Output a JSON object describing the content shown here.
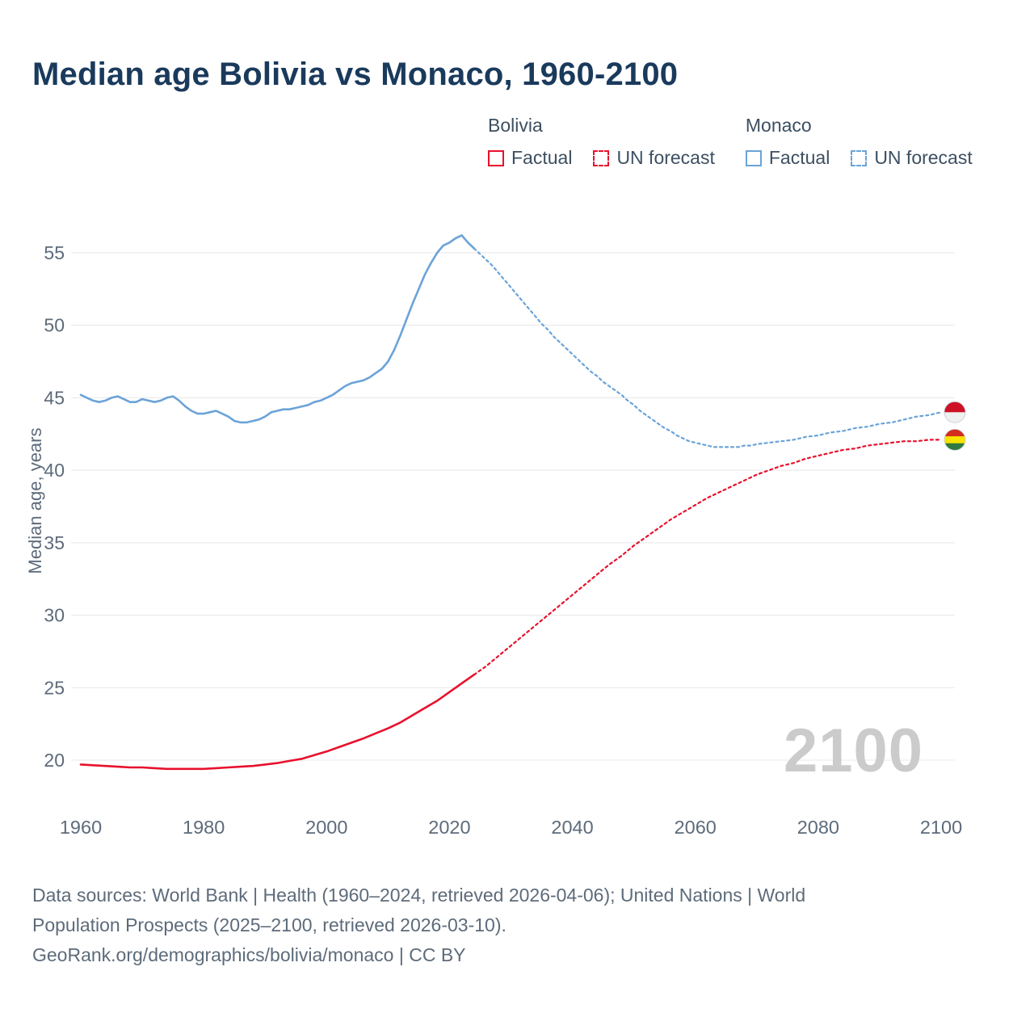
{
  "title": "Median age Bolivia vs Monaco, 1960-2100",
  "watermark": "2100",
  "colors": {
    "title": "#1a3a5c",
    "bolivia": "#e8112d",
    "monaco": "#6ba3d8",
    "axis_text": "#5d6b7a",
    "grid": "#e8e8e8",
    "watermark": "#cbcbcb"
  },
  "legend": {
    "groups": [
      {
        "name": "Bolivia",
        "color": "#e8112d",
        "items": [
          {
            "label": "Factual",
            "style": "solid"
          },
          {
            "label": "UN forecast",
            "style": "dashed"
          }
        ]
      },
      {
        "name": "Monaco",
        "color": "#6ba3d8",
        "items": [
          {
            "label": "Factual",
            "style": "solid"
          },
          {
            "label": "UN forecast",
            "style": "dashed"
          }
        ]
      }
    ]
  },
  "footer": {
    "lines": [
      "Data sources: World Bank | Health (1960–2024, retrieved 2026-04-06); United Nations | World",
      "Population Prospects (2025–2100, retrieved 2026-03-10).",
      "GeoRank.org/demographics/bolivia/monaco | CC BY"
    ]
  },
  "chart_data": {
    "type": "line",
    "title": "Median age Bolivia vs Monaco, 1960-2100",
    "xlabel": "",
    "ylabel": "Median age, years",
    "xlim": [
      1960,
      2100
    ],
    "ylim": [
      19,
      57.5
    ],
    "xticks": [
      1960,
      1980,
      2000,
      2020,
      2040,
      2060,
      2080,
      2100
    ],
    "yticks": [
      20,
      25,
      30,
      35,
      40,
      45,
      50,
      55
    ],
    "grid": "horizontal",
    "legend_position": "top",
    "series": [
      {
        "id": "monaco-factual",
        "name": "Monaco Factual",
        "color": "#6ba3d8",
        "style": "solid",
        "points": [
          [
            1960,
            45.2
          ],
          [
            1961,
            45.0
          ],
          [
            1962,
            44.8
          ],
          [
            1963,
            44.7
          ],
          [
            1964,
            44.8
          ],
          [
            1965,
            45.0
          ],
          [
            1966,
            45.1
          ],
          [
            1967,
            44.9
          ],
          [
            1968,
            44.7
          ],
          [
            1969,
            44.7
          ],
          [
            1970,
            44.9
          ],
          [
            1971,
            44.8
          ],
          [
            1972,
            44.7
          ],
          [
            1973,
            44.8
          ],
          [
            1974,
            45.0
          ],
          [
            1975,
            45.1
          ],
          [
            1976,
            44.8
          ],
          [
            1977,
            44.4
          ],
          [
            1978,
            44.1
          ],
          [
            1979,
            43.9
          ],
          [
            1980,
            43.9
          ],
          [
            1981,
            44.0
          ],
          [
            1982,
            44.1
          ],
          [
            1983,
            43.9
          ],
          [
            1984,
            43.7
          ],
          [
            1985,
            43.4
          ],
          [
            1986,
            43.3
          ],
          [
            1987,
            43.3
          ],
          [
            1988,
            43.4
          ],
          [
            1989,
            43.5
          ],
          [
            1990,
            43.7
          ],
          [
            1991,
            44.0
          ],
          [
            1992,
            44.1
          ],
          [
            1993,
            44.2
          ],
          [
            1994,
            44.2
          ],
          [
            1995,
            44.3
          ],
          [
            1996,
            44.4
          ],
          [
            1997,
            44.5
          ],
          [
            1998,
            44.7
          ],
          [
            1999,
            44.8
          ],
          [
            2000,
            45.0
          ],
          [
            2001,
            45.2
          ],
          [
            2002,
            45.5
          ],
          [
            2003,
            45.8
          ],
          [
            2004,
            46.0
          ],
          [
            2005,
            46.1
          ],
          [
            2006,
            46.2
          ],
          [
            2007,
            46.4
          ],
          [
            2008,
            46.7
          ],
          [
            2009,
            47.0
          ],
          [
            2010,
            47.5
          ],
          [
            2011,
            48.3
          ],
          [
            2012,
            49.3
          ],
          [
            2013,
            50.4
          ],
          [
            2014,
            51.5
          ],
          [
            2015,
            52.5
          ],
          [
            2016,
            53.5
          ],
          [
            2017,
            54.3
          ],
          [
            2018,
            55.0
          ],
          [
            2019,
            55.5
          ],
          [
            2020,
            55.7
          ],
          [
            2021,
            56.0
          ],
          [
            2022,
            56.2
          ],
          [
            2023,
            55.7
          ],
          [
            2024,
            55.3
          ]
        ]
      },
      {
        "id": "monaco-forecast",
        "name": "Monaco UN forecast",
        "color": "#6ba3d8",
        "style": "dashed",
        "points": [
          [
            2024,
            55.3
          ],
          [
            2025,
            54.9
          ],
          [
            2026,
            54.5
          ],
          [
            2027,
            54.1
          ],
          [
            2028,
            53.6
          ],
          [
            2029,
            53.1
          ],
          [
            2030,
            52.6
          ],
          [
            2031,
            52.1
          ],
          [
            2032,
            51.6
          ],
          [
            2033,
            51.1
          ],
          [
            2034,
            50.6
          ],
          [
            2035,
            50.1
          ],
          [
            2036,
            49.7
          ],
          [
            2037,
            49.2
          ],
          [
            2038,
            48.8
          ],
          [
            2039,
            48.4
          ],
          [
            2040,
            48.0
          ],
          [
            2041,
            47.6
          ],
          [
            2042,
            47.2
          ],
          [
            2043,
            46.8
          ],
          [
            2044,
            46.5
          ],
          [
            2045,
            46.1
          ],
          [
            2046,
            45.8
          ],
          [
            2047,
            45.5
          ],
          [
            2048,
            45.2
          ],
          [
            2049,
            44.8
          ],
          [
            2050,
            44.5
          ],
          [
            2051,
            44.1
          ],
          [
            2052,
            43.8
          ],
          [
            2053,
            43.5
          ],
          [
            2054,
            43.2
          ],
          [
            2055,
            42.9
          ],
          [
            2056,
            42.7
          ],
          [
            2057,
            42.4
          ],
          [
            2058,
            42.2
          ],
          [
            2059,
            42.0
          ],
          [
            2060,
            41.9
          ],
          [
            2061,
            41.8
          ],
          [
            2062,
            41.7
          ],
          [
            2063,
            41.6
          ],
          [
            2064,
            41.6
          ],
          [
            2065,
            41.6
          ],
          [
            2066,
            41.6
          ],
          [
            2067,
            41.6
          ],
          [
            2068,
            41.7
          ],
          [
            2069,
            41.7
          ],
          [
            2070,
            41.8
          ],
          [
            2072,
            41.9
          ],
          [
            2074,
            42.0
          ],
          [
            2076,
            42.1
          ],
          [
            2078,
            42.3
          ],
          [
            2080,
            42.4
          ],
          [
            2082,
            42.6
          ],
          [
            2084,
            42.7
          ],
          [
            2086,
            42.9
          ],
          [
            2088,
            43.0
          ],
          [
            2090,
            43.2
          ],
          [
            2092,
            43.3
          ],
          [
            2094,
            43.5
          ],
          [
            2096,
            43.7
          ],
          [
            2098,
            43.8
          ],
          [
            2100,
            44.0
          ]
        ]
      },
      {
        "id": "bolivia-factual",
        "name": "Bolivia Factual",
        "color": "#e8112d",
        "style": "solid",
        "points": [
          [
            1960,
            19.7
          ],
          [
            1962,
            19.65
          ],
          [
            1964,
            19.6
          ],
          [
            1966,
            19.55
          ],
          [
            1968,
            19.5
          ],
          [
            1970,
            19.5
          ],
          [
            1972,
            19.45
          ],
          [
            1974,
            19.4
          ],
          [
            1976,
            19.4
          ],
          [
            1978,
            19.4
          ],
          [
            1980,
            19.4
          ],
          [
            1982,
            19.45
          ],
          [
            1984,
            19.5
          ],
          [
            1986,
            19.55
          ],
          [
            1988,
            19.6
          ],
          [
            1990,
            19.7
          ],
          [
            1992,
            19.8
          ],
          [
            1994,
            19.95
          ],
          [
            1996,
            20.1
          ],
          [
            1998,
            20.35
          ],
          [
            2000,
            20.6
          ],
          [
            2002,
            20.9
          ],
          [
            2004,
            21.2
          ],
          [
            2006,
            21.5
          ],
          [
            2008,
            21.85
          ],
          [
            2010,
            22.2
          ],
          [
            2012,
            22.6
          ],
          [
            2014,
            23.1
          ],
          [
            2016,
            23.6
          ],
          [
            2018,
            24.1
          ],
          [
            2020,
            24.7
          ],
          [
            2022,
            25.3
          ],
          [
            2024,
            25.9
          ]
        ]
      },
      {
        "id": "bolivia-forecast",
        "name": "Bolivia UN forecast",
        "color": "#e8112d",
        "style": "dashed",
        "points": [
          [
            2024,
            25.9
          ],
          [
            2026,
            26.5
          ],
          [
            2028,
            27.2
          ],
          [
            2030,
            27.9
          ],
          [
            2032,
            28.6
          ],
          [
            2034,
            29.3
          ],
          [
            2036,
            30.0
          ],
          [
            2038,
            30.7
          ],
          [
            2040,
            31.4
          ],
          [
            2042,
            32.1
          ],
          [
            2044,
            32.8
          ],
          [
            2046,
            33.5
          ],
          [
            2048,
            34.1
          ],
          [
            2050,
            34.8
          ],
          [
            2052,
            35.4
          ],
          [
            2054,
            36.0
          ],
          [
            2056,
            36.6
          ],
          [
            2058,
            37.1
          ],
          [
            2060,
            37.6
          ],
          [
            2062,
            38.1
          ],
          [
            2064,
            38.5
          ],
          [
            2066,
            38.9
          ],
          [
            2068,
            39.3
          ],
          [
            2070,
            39.7
          ],
          [
            2072,
            40.0
          ],
          [
            2074,
            40.3
          ],
          [
            2076,
            40.5
          ],
          [
            2078,
            40.8
          ],
          [
            2080,
            41.0
          ],
          [
            2082,
            41.2
          ],
          [
            2084,
            41.4
          ],
          [
            2086,
            41.5
          ],
          [
            2088,
            41.7
          ],
          [
            2090,
            41.8
          ],
          [
            2092,
            41.9
          ],
          [
            2094,
            42.0
          ],
          [
            2096,
            42.0
          ],
          [
            2098,
            42.1
          ],
          [
            2100,
            42.1
          ]
        ]
      }
    ],
    "end_labels": [
      {
        "text": "44",
        "value": 44,
        "flag": "monaco",
        "color": "#6ba3d8",
        "stripes": [
          "#ce1126",
          "#eef0f2"
        ]
      },
      {
        "text": "42.1",
        "value": 42.1,
        "flag": "bolivia",
        "color": "#e8112d",
        "stripes": [
          "#d52b1e",
          "#f9e300",
          "#2f7a3f"
        ]
      }
    ]
  }
}
